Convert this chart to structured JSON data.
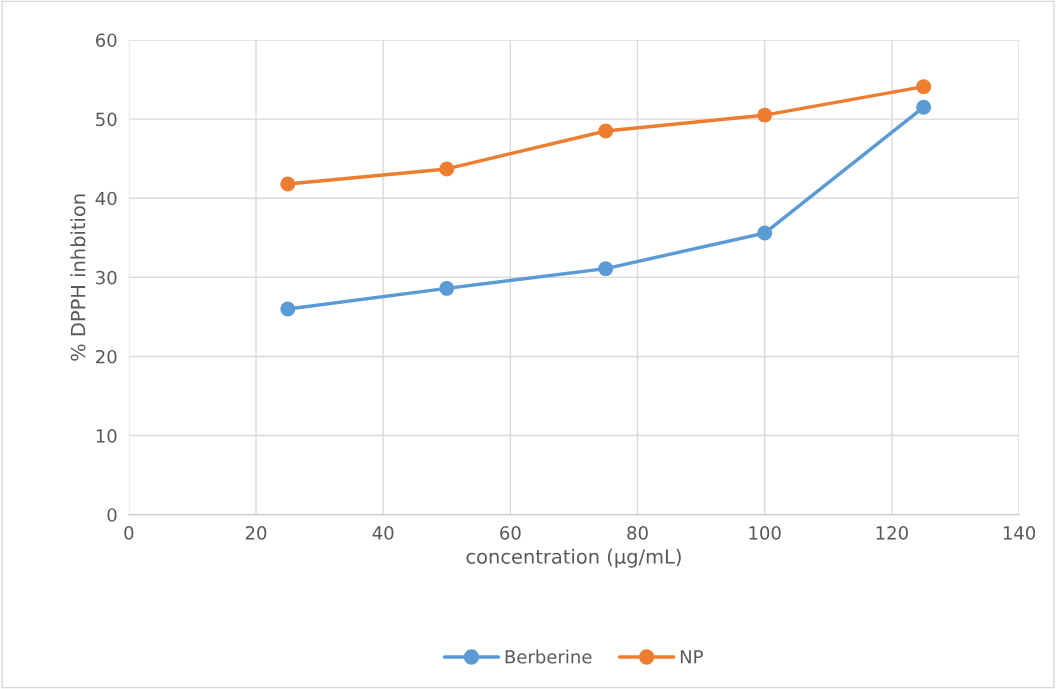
{
  "chart_data": {
    "type": "line",
    "xlabel": "concentration (µg/mL)",
    "ylabel": "% DPPH inhbition",
    "x": [
      25,
      50,
      75,
      100,
      125
    ],
    "series": [
      {
        "name": "Berberine",
        "color": "#5b9bd5",
        "values": [
          26.0,
          28.6,
          31.1,
          35.6,
          51.5
        ]
      },
      {
        "name": "NP",
        "color": "#ed7d31",
        "values": [
          41.8,
          43.7,
          48.5,
          50.5,
          54.1
        ]
      }
    ],
    "xlim": [
      0,
      140
    ],
    "xticks": [
      0,
      20,
      40,
      60,
      80,
      100,
      120,
      140
    ],
    "ylim": [
      0,
      60
    ],
    "yticks": [
      0,
      10,
      20,
      30,
      40,
      50,
      60
    ],
    "grid": true,
    "legend": "bottom",
    "marker": "circle",
    "line_style": "solid"
  }
}
